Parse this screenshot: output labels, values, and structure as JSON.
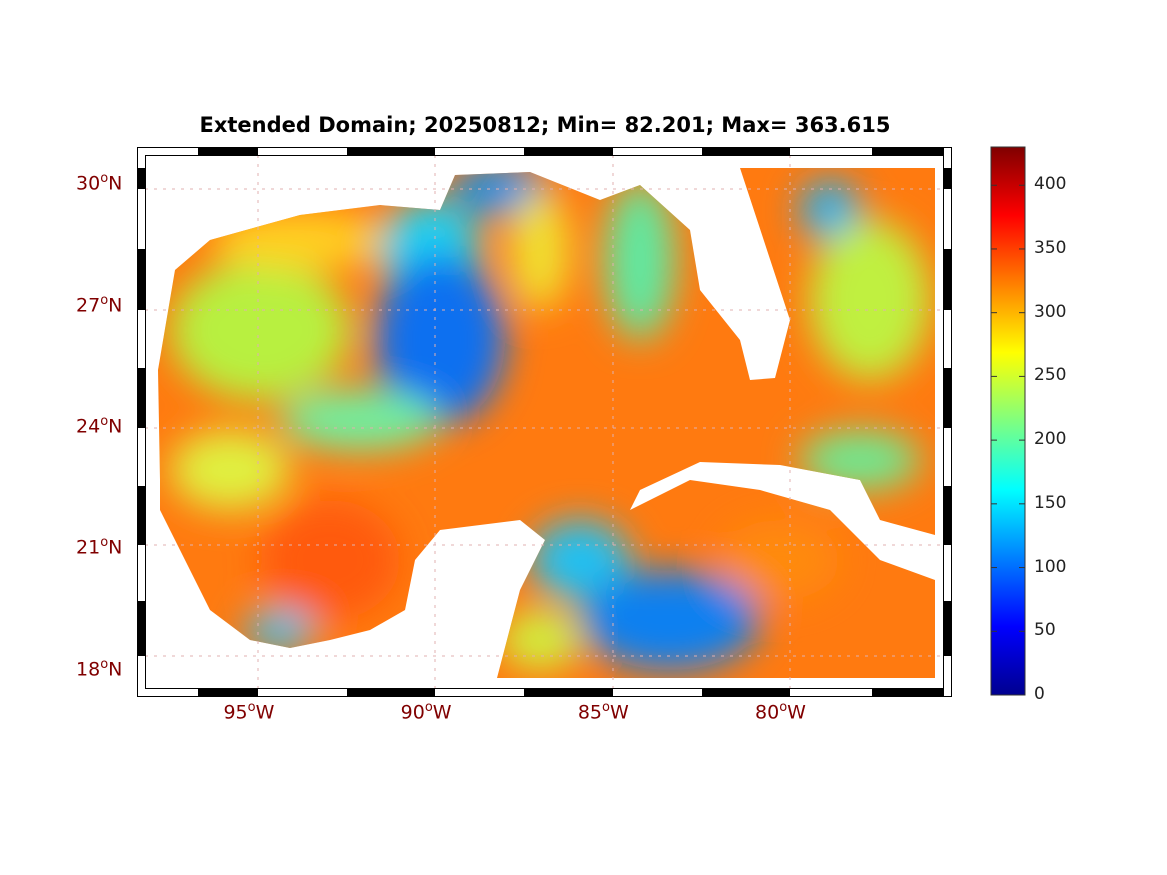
{
  "title": "Extended Domain; 20250812; Min= 82.201; Max= 363.615",
  "chart_data": {
    "type": "heatmap",
    "title": "Extended Domain; 20250812; Min= 82.201; Max= 363.615",
    "date": "20250812",
    "min": 82.201,
    "max": 363.615,
    "lon_range": [
      -98.4,
      -75.4
    ],
    "lat_range": [
      17.4,
      31.0
    ],
    "x_ticks": [
      {
        "value": -95,
        "deg": "95",
        "sup": "o",
        "hem": "W"
      },
      {
        "value": -90,
        "deg": "90",
        "sup": "o",
        "hem": "W"
      },
      {
        "value": -85,
        "deg": "85",
        "sup": "o",
        "hem": "W"
      },
      {
        "value": -80,
        "deg": "80",
        "sup": "o",
        "hem": "W"
      }
    ],
    "y_ticks": [
      {
        "value": 30,
        "deg": "30",
        "sup": "o",
        "hem": "N"
      },
      {
        "value": 27,
        "deg": "27",
        "sup": "o",
        "hem": "N"
      },
      {
        "value": 24,
        "deg": "24",
        "sup": "o",
        "hem": "N"
      },
      {
        "value": 21,
        "deg": "21",
        "sup": "o",
        "hem": "N"
      },
      {
        "value": 18,
        "deg": "18",
        "sup": "o",
        "hem": "N"
      }
    ],
    "colorbar": {
      "range": [
        0,
        430
      ],
      "colormap": "jet",
      "ticks": [
        "0",
        "50",
        "100",
        "150",
        "200",
        "250",
        "300",
        "350",
        "400"
      ]
    }
  }
}
